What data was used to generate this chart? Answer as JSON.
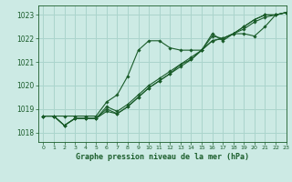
{
  "background_color": "#cceae4",
  "grid_color": "#aad4cc",
  "line_color": "#1a5c2a",
  "title": "Graphe pression niveau de la mer (hPa)",
  "xlim": [
    -0.5,
    23
  ],
  "ylim": [
    1017.6,
    1023.4
  ],
  "yticks": [
    1018,
    1019,
    1020,
    1021,
    1022,
    1023
  ],
  "xticks": [
    0,
    1,
    2,
    3,
    4,
    5,
    6,
    7,
    8,
    9,
    10,
    11,
    12,
    13,
    14,
    15,
    16,
    17,
    18,
    19,
    20,
    21,
    22,
    23
  ],
  "series": [
    [
      1018.7,
      1018.7,
      1018.7,
      1018.7,
      1018.7,
      1018.7,
      1019.3,
      1019.6,
      1020.4,
      1021.5,
      1021.9,
      1021.9,
      1021.6,
      1021.5,
      1021.5,
      1021.5,
      1022.2,
      1021.9,
      1022.2,
      1022.2,
      1022.1,
      1022.5,
      1023.0,
      1023.1
    ],
    [
      1018.7,
      1018.7,
      1018.3,
      1018.6,
      1018.6,
      1018.6,
      1018.9,
      1018.8,
      1019.1,
      1019.5,
      1019.9,
      1020.2,
      1020.5,
      1020.8,
      1021.1,
      1021.5,
      1021.9,
      1022.0,
      1022.2,
      1022.5,
      1022.8,
      1023.0,
      1023.0,
      1023.1
    ],
    [
      1018.7,
      1018.7,
      1018.3,
      1018.6,
      1018.6,
      1018.6,
      1019.1,
      1018.9,
      1019.2,
      1019.6,
      1020.0,
      1020.3,
      1020.6,
      1020.9,
      1021.2,
      1021.5,
      1021.9,
      1022.0,
      1022.2,
      1022.5,
      1022.8,
      1023.0,
      1023.0,
      1023.1
    ],
    [
      1018.7,
      1018.7,
      1018.3,
      1018.6,
      1018.6,
      1018.6,
      1019.0,
      1018.8,
      1019.1,
      1019.5,
      1019.9,
      1020.2,
      1020.5,
      1020.9,
      1021.1,
      1021.5,
      1022.1,
      1022.0,
      1022.2,
      1022.4,
      1022.7,
      1022.9,
      1023.0,
      1023.1
    ]
  ]
}
